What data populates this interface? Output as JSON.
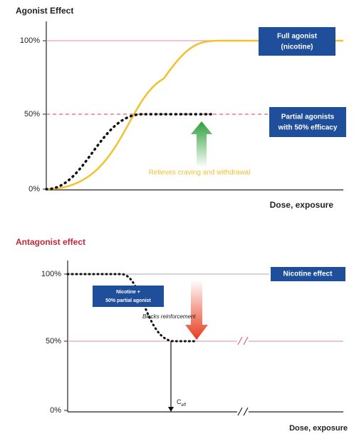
{
  "top_panel": {
    "title": "Agonist Effect",
    "y_labels": [
      "100%",
      "50%",
      "0%"
    ],
    "x_label": "Dose, exposure",
    "full_agonist_box": [
      "Full agonist",
      "(nicotine)"
    ],
    "partial_agonist_box": [
      "Partial agonists",
      "with 50% efficacy"
    ],
    "annotation": "Relieves craving and withdrawal"
  },
  "bottom_panel": {
    "title": "Antagonist effect",
    "y_labels": [
      "100%",
      "50%",
      "0%"
    ],
    "x_label": "Dose, exposure",
    "nicotine_effect_box": "Nicotine effect",
    "combo_box": [
      "Nicotine +",
      "50% partial agonist"
    ],
    "annotation": "Blocks reinforcement",
    "concentration_label": {
      "main": "C",
      "sub": "eff"
    }
  }
}
